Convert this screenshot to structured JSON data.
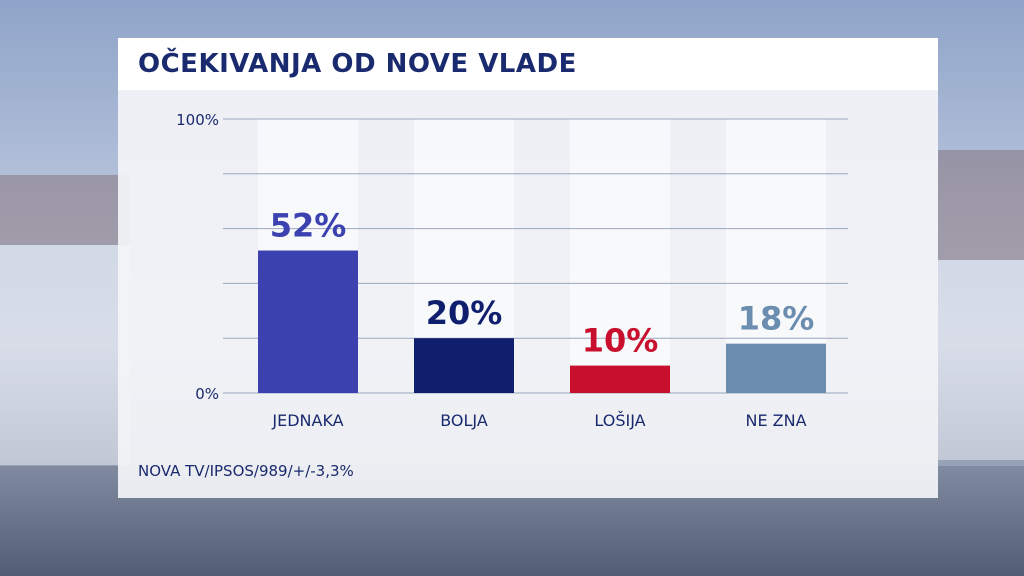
{
  "title": "OČEKIVANJA OD NOVE VLADE",
  "source": "NOVA TV/IPSOS/989/+/-3,3%",
  "chart_data": {
    "type": "bar",
    "title": "OČEKIVANJA OD NOVE VLADE",
    "categories": [
      "JEDNAKA",
      "BOLJA",
      "LOŠIJA",
      "NE ZNA"
    ],
    "values": [
      52,
      20,
      10,
      18
    ],
    "value_labels": [
      "52%",
      "20%",
      "10%",
      "18%"
    ],
    "colors": [
      "#3b42b0",
      "#0f1f6e",
      "#c8102e",
      "#6b8db0"
    ],
    "ytick_labels": [
      "0%",
      "100%"
    ],
    "ylim": [
      0,
      100
    ],
    "grid": true
  }
}
